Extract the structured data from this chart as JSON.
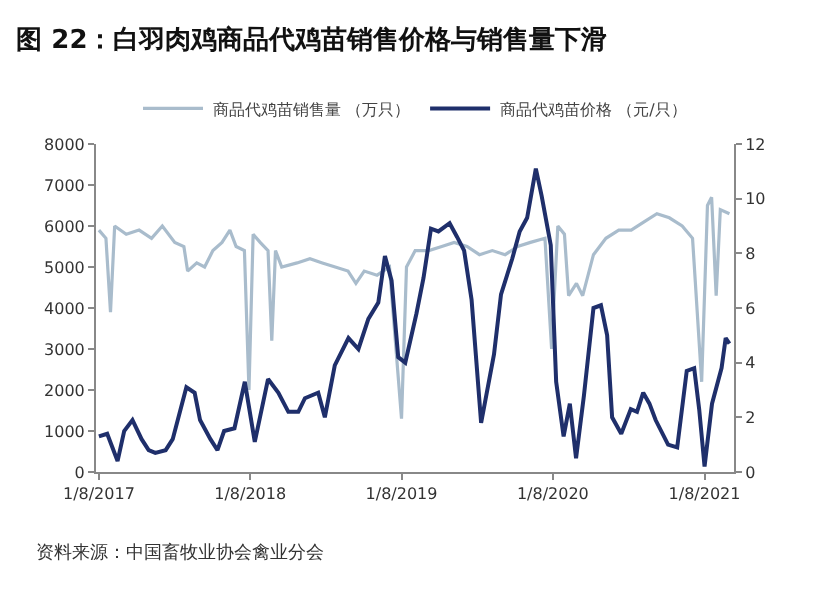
{
  "chart_data": {
    "type": "line",
    "title": "图 22：白羽肉鸡商品代鸡苗销售价格与销售量下滑",
    "annotations": [
      "资料来源：中国畜牧业协会禽业分会"
    ],
    "legend": "top",
    "marker": "none",
    "line_style": "solid",
    "xlim": [
      "2017-01-01",
      "2021-03-20"
    ],
    "xticks": [
      {
        "value": "2017-01-08",
        "label": "1/8/2017"
      },
      {
        "value": "2018-01-08",
        "label": "1/8/2018"
      },
      {
        "value": "2019-01-08",
        "label": "1/8/2019"
      },
      {
        "value": "2020-01-08",
        "label": "1/8/2020"
      },
      {
        "value": "2021-01-08",
        "label": "1/8/2021"
      }
    ],
    "ylim": [
      0,
      8000
    ],
    "yticks": [
      0,
      1000,
      2000,
      3000,
      4000,
      5000,
      6000,
      7000,
      8000
    ],
    "y2lim": [
      0,
      12
    ],
    "y2ticks": [
      0,
      2,
      4,
      6,
      8,
      10,
      12
    ],
    "series": [
      {
        "name": "商品代鸡苗销售量 （万只）",
        "color": "#a9bccc",
        "axis": "y",
        "x": [
          "2017-01-08",
          "2017-01-25",
          "2017-02-05",
          "2017-02-15",
          "2017-03-15",
          "2017-04-15",
          "2017-05-15",
          "2017-06-10",
          "2017-07-10",
          "2017-08-01",
          "2017-08-10",
          "2017-09-01",
          "2017-09-20",
          "2017-10-10",
          "2017-11-01",
          "2017-11-20",
          "2017-12-05",
          "2017-12-25",
          "2018-01-05",
          "2018-01-15",
          "2018-02-01",
          "2018-02-20",
          "2018-03-01",
          "2018-03-10",
          "2018-03-25",
          "2018-05-01",
          "2018-06-01",
          "2018-07-01",
          "2018-08-01",
          "2018-09-01",
          "2018-09-20",
          "2018-10-10",
          "2018-11-10",
          "2018-12-10",
          "2019-01-08",
          "2019-01-20",
          "2019-02-10",
          "2019-03-15",
          "2019-04-15",
          "2019-05-15",
          "2019-06-15",
          "2019-07-15",
          "2019-08-15",
          "2019-09-15",
          "2019-10-15",
          "2019-11-15",
          "2019-12-20",
          "2020-01-05",
          "2020-01-20",
          "2020-02-05",
          "2020-02-15",
          "2020-03-05",
          "2020-03-20",
          "2020-04-15",
          "2020-05-15",
          "2020-06-15",
          "2020-07-15",
          "2020-08-15",
          "2020-09-15",
          "2020-10-15",
          "2020-11-15",
          "2020-12-10",
          "2021-01-01",
          "2021-01-15",
          "2021-01-25",
          "2021-02-05",
          "2021-02-15",
          "2021-03-09"
        ],
        "values": [
          5900,
          5700,
          3900,
          6000,
          5800,
          5900,
          5700,
          6000,
          5600,
          5500,
          4900,
          5100,
          5000,
          5400,
          5600,
          5900,
          5500,
          5400,
          2000,
          5800,
          5600,
          5400,
          3200,
          5400,
          5000,
          5100,
          5200,
          5100,
          5000,
          4900,
          4600,
          4900,
          4800,
          5000,
          1300,
          5000,
          5400,
          5400,
          5500,
          5600,
          5500,
          5300,
          5400,
          5300,
          5500,
          5600,
          5700,
          3000,
          6000,
          5800,
          4300,
          4600,
          4300,
          5300,
          5700,
          5900,
          5900,
          6100,
          6300,
          6200,
          6000,
          5700,
          2200,
          6500,
          6700,
          4300,
          6400,
          6300
        ]
      },
      {
        "name": "商品代鸡苗价格 （元/只）",
        "color": "#1f2f6b",
        "axis": "y2",
        "x": [
          "2017-01-08",
          "2017-01-28",
          "2017-02-22",
          "2017-03-10",
          "2017-03-30",
          "2017-04-21",
          "2017-05-08",
          "2017-05-24",
          "2017-06-18",
          "2017-07-05",
          "2017-08-07",
          "2017-08-27",
          "2017-09-09",
          "2017-10-04",
          "2017-10-21",
          "2017-11-06",
          "2017-12-01",
          "2017-12-26",
          "2018-01-19",
          "2018-02-20",
          "2018-03-17",
          "2018-04-10",
          "2018-05-04",
          "2018-05-20",
          "2018-06-21",
          "2018-07-07",
          "2018-07-31",
          "2018-09-02",
          "2018-09-26",
          "2018-10-20",
          "2018-11-13",
          "2018-11-29",
          "2018-12-15",
          "2018-12-31",
          "2019-01-17",
          "2019-02-13",
          "2019-03-02",
          "2019-03-20",
          "2019-04-07",
          "2019-05-04",
          "2019-05-22",
          "2019-06-08",
          "2019-06-26",
          "2019-07-19",
          "2019-08-19",
          "2019-09-05",
          "2019-10-02",
          "2019-10-20",
          "2019-11-07",
          "2019-11-28",
          "2019-12-12",
          "2020-01-03",
          "2020-01-16",
          "2020-02-03",
          "2020-02-18",
          "2020-03-04",
          "2020-03-23",
          "2020-04-15",
          "2020-05-03",
          "2020-05-18",
          "2020-05-30",
          "2020-06-21",
          "2020-07-14",
          "2020-07-29",
          "2020-08-13",
          "2020-08-28",
          "2020-09-12",
          "2020-10-12",
          "2020-11-03",
          "2020-11-26",
          "2020-12-14",
          "2020-12-26",
          "2021-01-08",
          "2021-01-26",
          "2021-02-18",
          "2021-02-28",
          "2021-03-09"
        ],
        "values": [
          1.3,
          1.4,
          0.4,
          1.5,
          1.9,
          1.2,
          0.8,
          0.7,
          0.8,
          1.2,
          3.1,
          2.9,
          1.9,
          1.2,
          0.8,
          1.5,
          1.6,
          3.3,
          1.1,
          3.4,
          2.9,
          2.2,
          2.2,
          2.7,
          2.9,
          2.0,
          3.9,
          4.9,
          4.5,
          5.6,
          6.2,
          7.9,
          7.0,
          4.2,
          4.0,
          5.8,
          7.1,
          8.9,
          8.8,
          9.1,
          8.6,
          8.1,
          6.3,
          1.8,
          4.3,
          6.5,
          7.8,
          8.8,
          9.3,
          11.1,
          10.1,
          8.3,
          3.3,
          1.3,
          2.5,
          0.5,
          2.8,
          6.0,
          6.1,
          5.0,
          2.0,
          1.4,
          2.3,
          2.2,
          2.9,
          2.5,
          1.9,
          1.0,
          0.9,
          3.7,
          3.8,
          2.3,
          0.2,
          2.5,
          3.8,
          4.9,
          4.7
        ]
      }
    ]
  }
}
